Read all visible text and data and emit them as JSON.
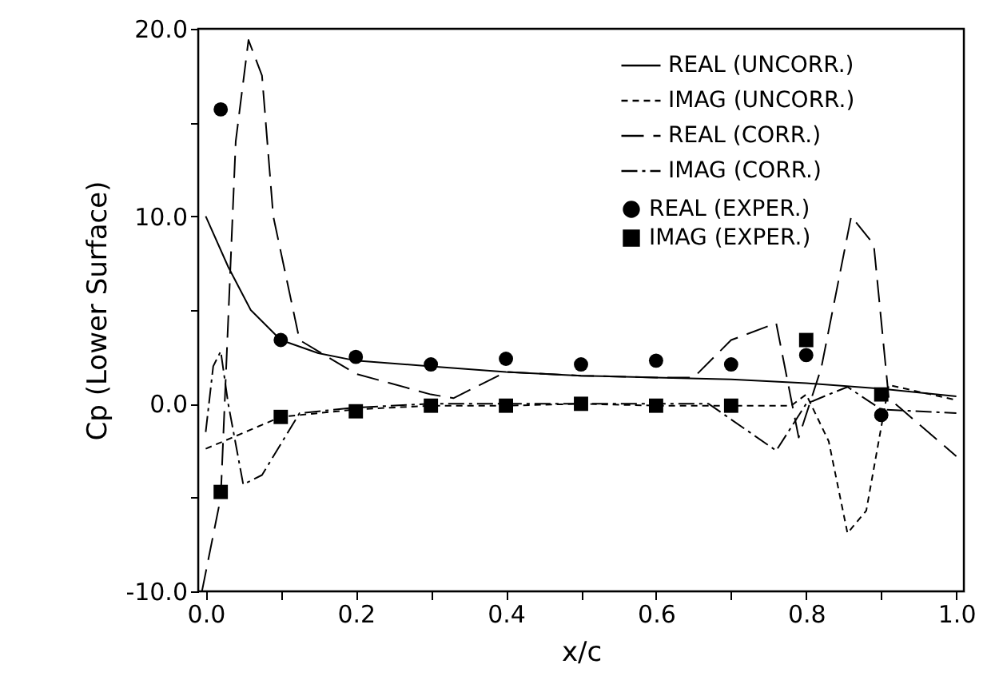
{
  "chart_data": {
    "type": "line",
    "xlabel": "x/c",
    "ylabel": "Cp (Lower Surface)",
    "xlim": [
      -0.01,
      1.01
    ],
    "ylim": [
      -10,
      20
    ],
    "xticks": [
      {
        "value": 0,
        "label": "0.0"
      },
      {
        "value": 0.1,
        "label": null
      },
      {
        "value": 0.2,
        "label": "0.2"
      },
      {
        "value": 0.3,
        "label": null
      },
      {
        "value": 0.4,
        "label": "0.4"
      },
      {
        "value": 0.5,
        "label": null
      },
      {
        "value": 0.6,
        "label": "0.6"
      },
      {
        "value": 0.7,
        "label": null
      },
      {
        "value": 0.8,
        "label": "0.8"
      },
      {
        "value": 0.9,
        "label": null
      },
      {
        "value": 1.0,
        "label": "1.0"
      }
    ],
    "yticks": [
      {
        "value": -10,
        "label": "-10.0"
      },
      {
        "value": -5,
        "label": null
      },
      {
        "value": 0,
        "label": "0.0"
      },
      {
        "value": 5,
        "label": null
      },
      {
        "value": 10,
        "label": "10.0"
      },
      {
        "value": 15,
        "label": null
      },
      {
        "value": 20,
        "label": "20.0"
      }
    ],
    "grid": false,
    "legend": "top right",
    "series": [
      {
        "name": "REAL (UNCORR.)",
        "line_style": "solid",
        "marker": "none",
        "color": "#000000",
        "x": [
          0,
          0.03,
          0.06,
          0.1,
          0.15,
          0.2,
          0.3,
          0.4,
          0.5,
          0.6,
          0.7,
          0.8,
          0.9,
          1.0
        ],
        "values": [
          10.0,
          7.3,
          5.0,
          3.4,
          2.7,
          2.3,
          2.0,
          1.7,
          1.5,
          1.4,
          1.3,
          1.1,
          0.8,
          0.4
        ]
      },
      {
        "name": "IMAG (UNCORR.)",
        "line_style": "dotted",
        "marker": "none",
        "color": "#000000",
        "x": [
          0,
          0.1,
          0.2,
          0.3,
          0.4,
          0.5,
          0.6,
          0.7,
          0.78,
          0.8,
          0.83,
          0.855,
          0.88,
          0.91,
          1.0
        ],
        "values": [
          -2.4,
          -0.7,
          -0.3,
          -0.1,
          -0.1,
          0.0,
          -0.1,
          -0.1,
          -0.1,
          0.5,
          -2.0,
          -6.9,
          -5.7,
          1.0,
          0.2
        ]
      },
      {
        "name": "REAL (CORR.)",
        "line_style": "dashed",
        "marker": "none",
        "color": "#000000",
        "x": [
          -0.005,
          0.02,
          0.04,
          0.057,
          0.075,
          0.09,
          0.125,
          0.2,
          0.3,
          0.33,
          0.4,
          0.5,
          0.6,
          0.65,
          0.7,
          0.76,
          0.79,
          0.82,
          0.86,
          0.89,
          0.91,
          1.0
        ],
        "values": [
          -10.0,
          -5.0,
          14.0,
          19.4,
          17.5,
          10.0,
          3.4,
          1.6,
          0.5,
          0.3,
          1.7,
          1.5,
          1.4,
          1.4,
          3.4,
          4.3,
          -1.8,
          1.9,
          10.0,
          8.5,
          0.3,
          -2.8
        ]
      },
      {
        "name": "IMAG (CORR.)",
        "line_style": "dashdot",
        "marker": "none",
        "color": "#000000",
        "x": [
          0,
          0.01,
          0.02,
          0.03,
          0.05,
          0.075,
          0.125,
          0.2,
          0.3,
          0.4,
          0.5,
          0.6,
          0.67,
          0.76,
          0.8,
          0.83,
          0.855,
          0.9,
          1.0
        ],
        "values": [
          -1.5,
          2.0,
          2.8,
          0.0,
          -4.3,
          -3.8,
          -0.5,
          -0.2,
          0.0,
          0.0,
          0.0,
          0.0,
          0.0,
          -2.5,
          0.0,
          0.5,
          0.9,
          -0.3,
          -0.5
        ]
      },
      {
        "name": "REAL (EXPER.)",
        "type": "scatter",
        "marker": "circle",
        "color": "#000000",
        "x": [
          0.02,
          0.1,
          0.2,
          0.3,
          0.4,
          0.5,
          0.6,
          0.7,
          0.8,
          0.9
        ],
        "values": [
          15.7,
          3.4,
          2.5,
          2.1,
          2.4,
          2.1,
          2.3,
          2.1,
          2.6,
          -0.6
        ]
      },
      {
        "name": "IMAG (EXPER.)",
        "type": "scatter",
        "marker": "square",
        "color": "#000000",
        "x": [
          0.02,
          0.1,
          0.2,
          0.3,
          0.4,
          0.5,
          0.6,
          0.7,
          0.8,
          0.9
        ],
        "values": [
          -4.7,
          -0.7,
          -0.4,
          -0.1,
          -0.1,
          0.0,
          -0.1,
          -0.1,
          3.4,
          0.5
        ]
      }
    ]
  }
}
